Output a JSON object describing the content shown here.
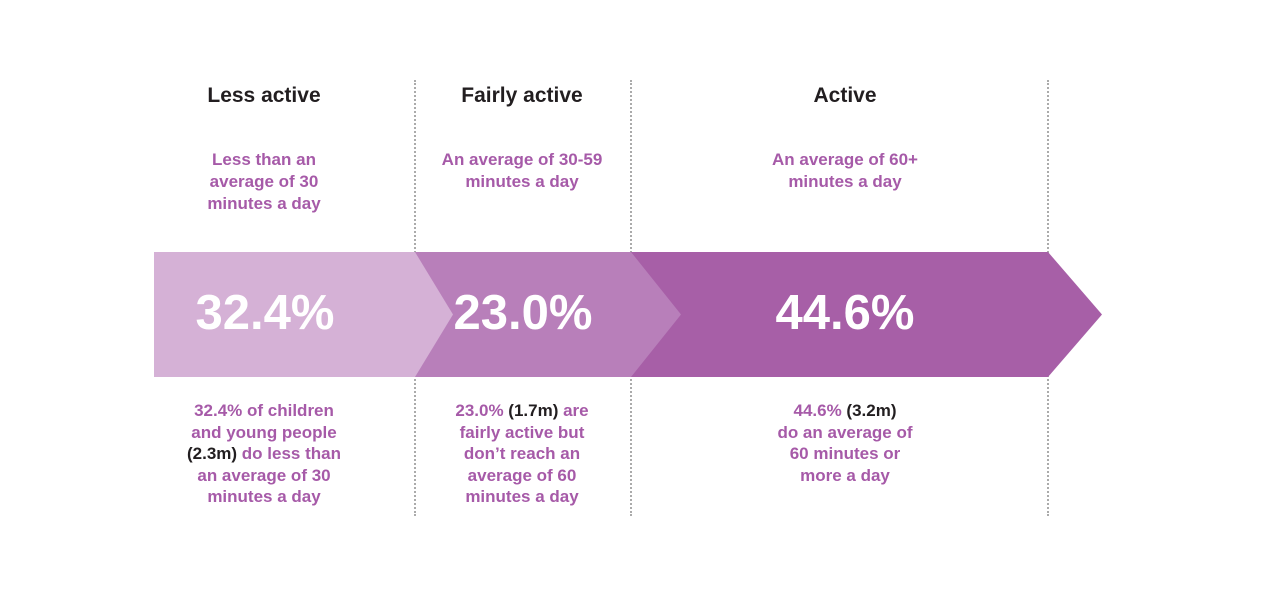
{
  "colors": {
    "background": "#ffffff",
    "segment_less_active": "#d5b1d6",
    "segment_fairly_active": "#b87fba",
    "segment_active": "#a75fa7",
    "purple_text": "#a65aa8",
    "dark_text": "#221e20",
    "percent_text": "#ffffff",
    "separator": "#ababab"
  },
  "sections": [
    {
      "header": "Less active",
      "subtitle": "Less than an\naverage of 30\nminutes a day",
      "percent": "32.4%",
      "caption_before": "32.4% of children\nand young people\n",
      "caption_highlight": "(2.3m)",
      "caption_after": " do less than\nan average of 30\nminutes a day"
    },
    {
      "header": "Fairly active",
      "subtitle": "An average of 30-59\nminutes a day",
      "percent": "23.0%",
      "caption_before": "23.0% ",
      "caption_highlight": "(1.7m)",
      "caption_after": " are\nfairly active but\ndon’t reach an\naverage of 60\nminutes a day"
    },
    {
      "header": "Active",
      "subtitle": "An average of 60+\nminutes a day",
      "percent": "44.6%",
      "caption_before": "44.6% ",
      "caption_highlight": "(3.2m)",
      "caption_after": "\ndo an average of\n60 minutes or\nmore a day"
    }
  ],
  "chart_data": {
    "type": "bar",
    "title": "",
    "categories": [
      "Less active",
      "Fairly active",
      "Active"
    ],
    "values": [
      32.4,
      23.0,
      44.6
    ],
    "value_labels": [
      "32.4%",
      "23.0%",
      "44.6%"
    ],
    "counts_millions": [
      2.3,
      1.7,
      3.2
    ],
    "count_labels": [
      "(2.3m)",
      "(1.7m)",
      "(3.2m)"
    ],
    "category_definitions": [
      "Less than an average of 30 minutes a day",
      "An average of 30-59 minutes a day",
      "An average of 60+ minutes a day"
    ],
    "descriptions": [
      "32.4% of children and young people (2.3m) do less than an average of 30 minutes a day",
      "23.0% (1.7m) are fairly active but don’t reach an average of 60 minutes a day",
      "44.6% (3.2m) do an average of 60 minutes or more a day"
    ],
    "units": "percent",
    "xlabel": "",
    "ylabel": "",
    "legend": false,
    "layout": "horizontal proportional arrow band, three segments light-to-dark purple, dotted column separators"
  }
}
